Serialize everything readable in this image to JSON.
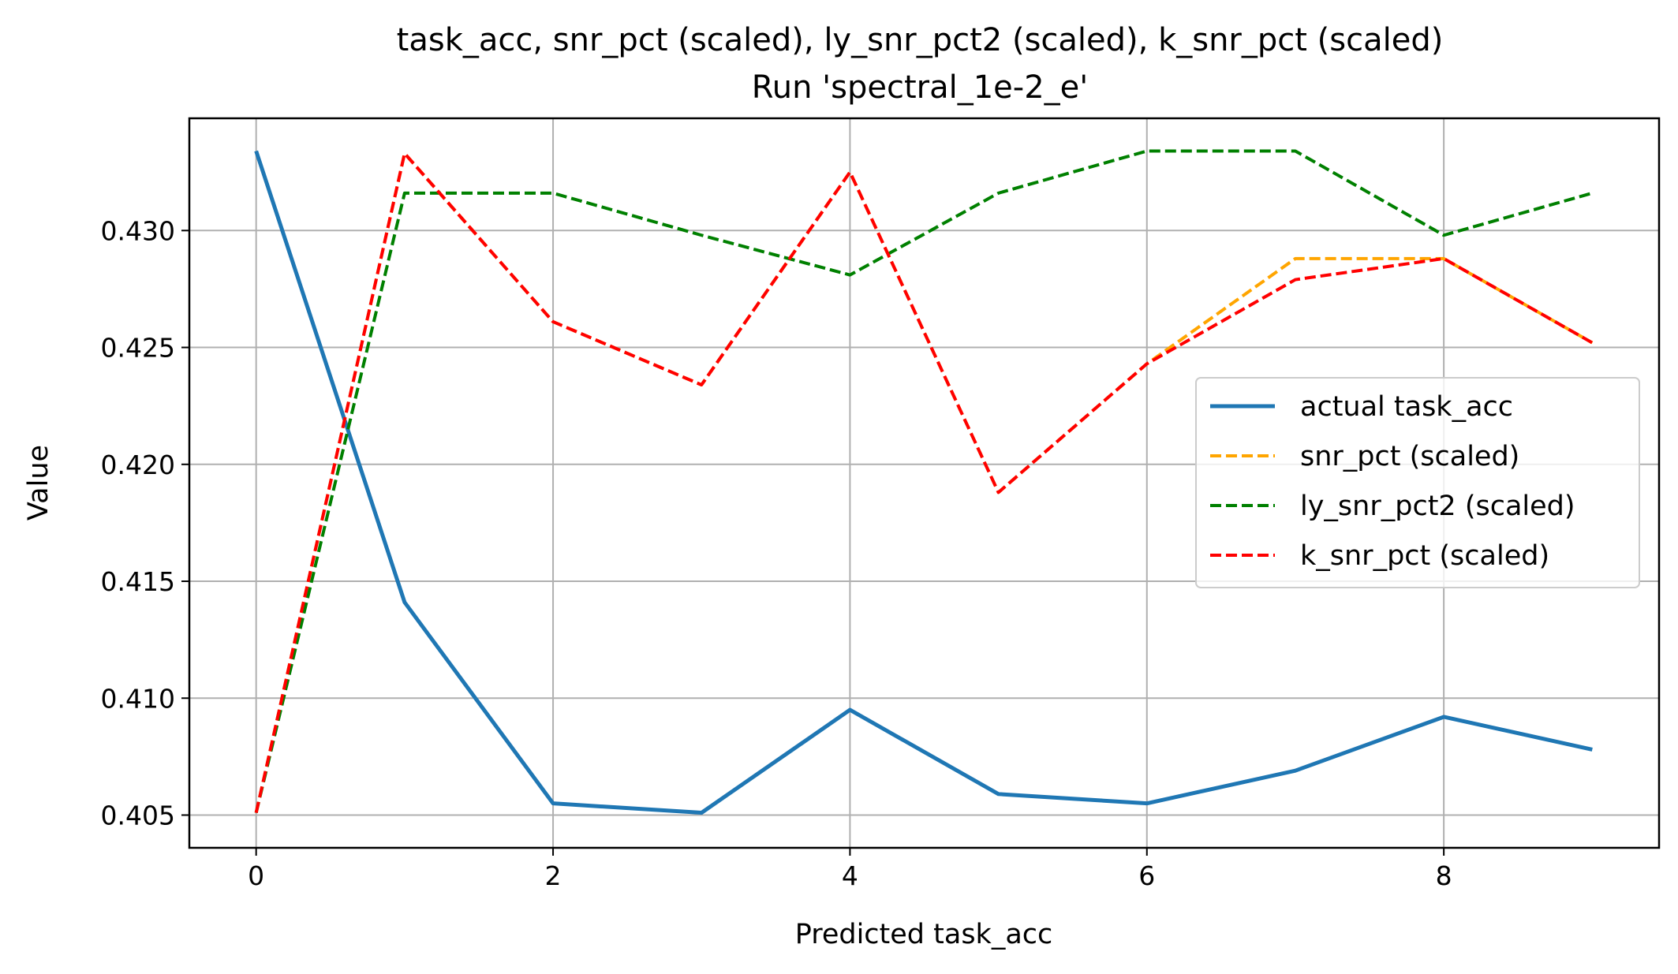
{
  "chart_data": {
    "type": "line",
    "title_lines": [
      "task_acc, snr_pct (scaled), ly_snr_pct2 (scaled), k_snr_pct (scaled)",
      "Run 'spectral_1e-2_e'"
    ],
    "xlabel": "Predicted task_acc",
    "ylabel": "Value",
    "xlim": [
      -0.45,
      9.45
    ],
    "ylim": [
      0.4036,
      0.4348
    ],
    "xticks": [
      0,
      2,
      4,
      6,
      8
    ],
    "xtick_labels": [
      "0",
      "2",
      "4",
      "6",
      "8"
    ],
    "yticks": [
      0.405,
      0.41,
      0.415,
      0.42,
      0.425,
      0.43
    ],
    "ytick_labels": [
      "0.405",
      "0.410",
      "0.415",
      "0.420",
      "0.425",
      "0.430"
    ],
    "grid": true,
    "legend_position": "center-right",
    "x": [
      0,
      1,
      2,
      3,
      4,
      5,
      6,
      7,
      8,
      9
    ],
    "series": [
      {
        "name": "actual task_acc",
        "color": "#1f77b4",
        "style": "solid",
        "values": [
          0.4334,
          0.4141,
          0.4055,
          0.4051,
          0.4095,
          0.4059,
          0.4055,
          0.4069,
          0.4092,
          0.4078
        ]
      },
      {
        "name": "snr_pct (scaled)",
        "color": "#ffa500",
        "style": "dashed",
        "values": [
          0.4051,
          0.4333,
          0.4261,
          0.4234,
          0.4325,
          0.4188,
          0.4243,
          0.4288,
          0.4288,
          0.4252
        ]
      },
      {
        "name": "ly_snr_pct2 (scaled)",
        "color": "#008000",
        "style": "dashed",
        "values": [
          0.4051,
          0.4316,
          0.4316,
          0.4298,
          0.4281,
          0.4316,
          0.4334,
          0.4334,
          0.4298,
          0.4316
        ]
      },
      {
        "name": "k_snr_pct (scaled)",
        "color": "#ff0000",
        "style": "dashed",
        "values": [
          0.4051,
          0.4333,
          0.4261,
          0.4234,
          0.4325,
          0.4188,
          0.4243,
          0.4279,
          0.4288,
          0.4252
        ]
      }
    ]
  }
}
